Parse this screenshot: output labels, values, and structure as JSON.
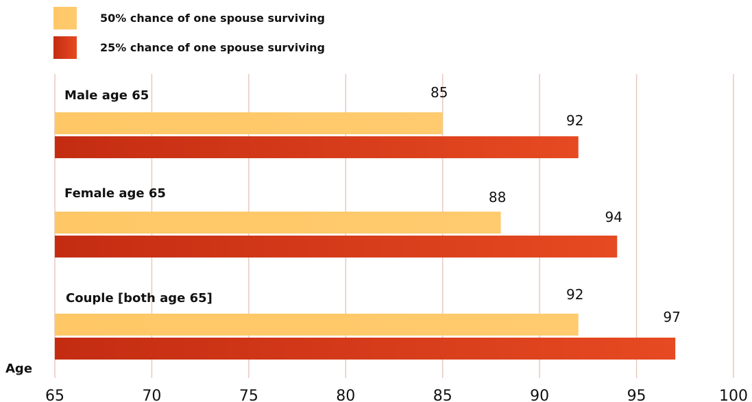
{
  "chart_data": {
    "type": "bar",
    "orientation": "horizontal",
    "title": "",
    "xlabel": "Age",
    "ylabel": "",
    "xlim": [
      65,
      100
    ],
    "xticks": [
      65,
      70,
      75,
      80,
      85,
      90,
      95,
      100
    ],
    "grid": true,
    "legend_position": "top-left",
    "categories": [
      "Male age 65",
      "Female age 65",
      "Couple [both age 65]"
    ],
    "series": [
      {
        "name": "50% chance of one spouse surviving",
        "color": "#FFC766",
        "values": [
          85,
          88,
          92
        ]
      },
      {
        "name": "25% chance of one spouse surviving",
        "color": "#D7361A",
        "values": [
          92,
          94,
          97
        ]
      }
    ]
  }
}
